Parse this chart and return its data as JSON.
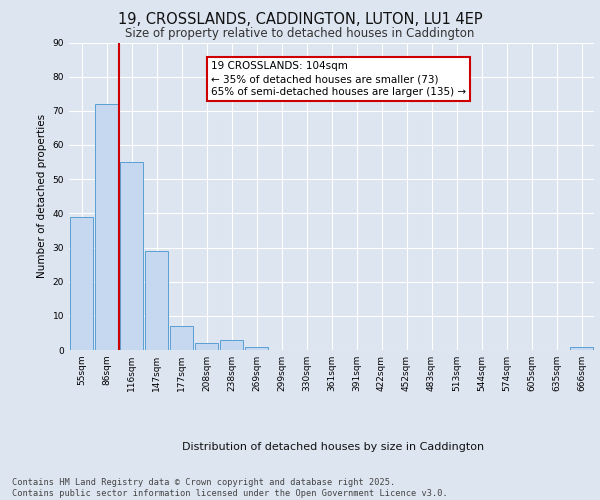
{
  "title": "19, CROSSLANDS, CADDINGTON, LUTON, LU1 4EP",
  "subtitle": "Size of property relative to detached houses in Caddington",
  "xlabel": "Distribution of detached houses by size in Caddington",
  "ylabel": "Number of detached properties",
  "categories": [
    "55sqm",
    "86sqm",
    "116sqm",
    "147sqm",
    "177sqm",
    "208sqm",
    "238sqm",
    "269sqm",
    "299sqm",
    "330sqm",
    "361sqm",
    "391sqm",
    "422sqm",
    "452sqm",
    "483sqm",
    "513sqm",
    "544sqm",
    "574sqm",
    "605sqm",
    "635sqm",
    "666sqm"
  ],
  "values": [
    39,
    72,
    55,
    29,
    7,
    2,
    3,
    1,
    0,
    0,
    0,
    0,
    0,
    0,
    0,
    0,
    0,
    0,
    0,
    0,
    1
  ],
  "bar_color": "#c5d8f0",
  "bar_edge_color": "#5a9fd4",
  "vline_color": "#cc0000",
  "annotation_text": "19 CROSSLANDS: 104sqm\n← 35% of detached houses are smaller (73)\n65% of semi-detached houses are larger (135) →",
  "annotation_box_color": "#ffffff",
  "annotation_box_edge_color": "#cc0000",
  "ylim": [
    0,
    90
  ],
  "yticks": [
    0,
    10,
    20,
    30,
    40,
    50,
    60,
    70,
    80,
    90
  ],
  "background_color": "#dde5f0",
  "plot_background": "#dde5f0",
  "grid_color": "#ffffff",
  "footer_line1": "Contains HM Land Registry data © Crown copyright and database right 2025.",
  "footer_line2": "Contains public sector information licensed under the Open Government Licence v3.0."
}
